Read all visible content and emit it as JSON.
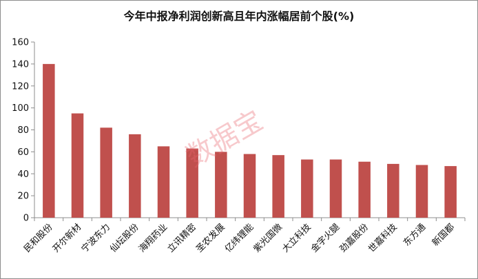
{
  "chart_data": {
    "type": "bar",
    "title": "今年中报净利润创新高且年内涨幅居前个股(%)",
    "categories": [
      "民和股份",
      "开尔新材",
      "宁波东力",
      "仙坛股份",
      "海翔药业",
      "立讯精密",
      "圣农发展",
      "亿纬锂能",
      "紫光国微",
      "大立科技",
      "金字火腿",
      "劲嘉股份",
      "世嘉科技",
      "东方通",
      "新国都"
    ],
    "series": [
      {
        "values": [
          140,
          95,
          82,
          76,
          65,
          63,
          60,
          58,
          57,
          53,
          53,
          51,
          49,
          48,
          47
        ]
      }
    ],
    "ylim": [
      0,
      160
    ],
    "yticks": [
      0,
      20,
      40,
      60,
      80,
      100,
      120,
      140,
      160
    ],
    "grid": false,
    "legend": "none",
    "bar_color": "#c0504d",
    "watermark": "数据宝"
  }
}
